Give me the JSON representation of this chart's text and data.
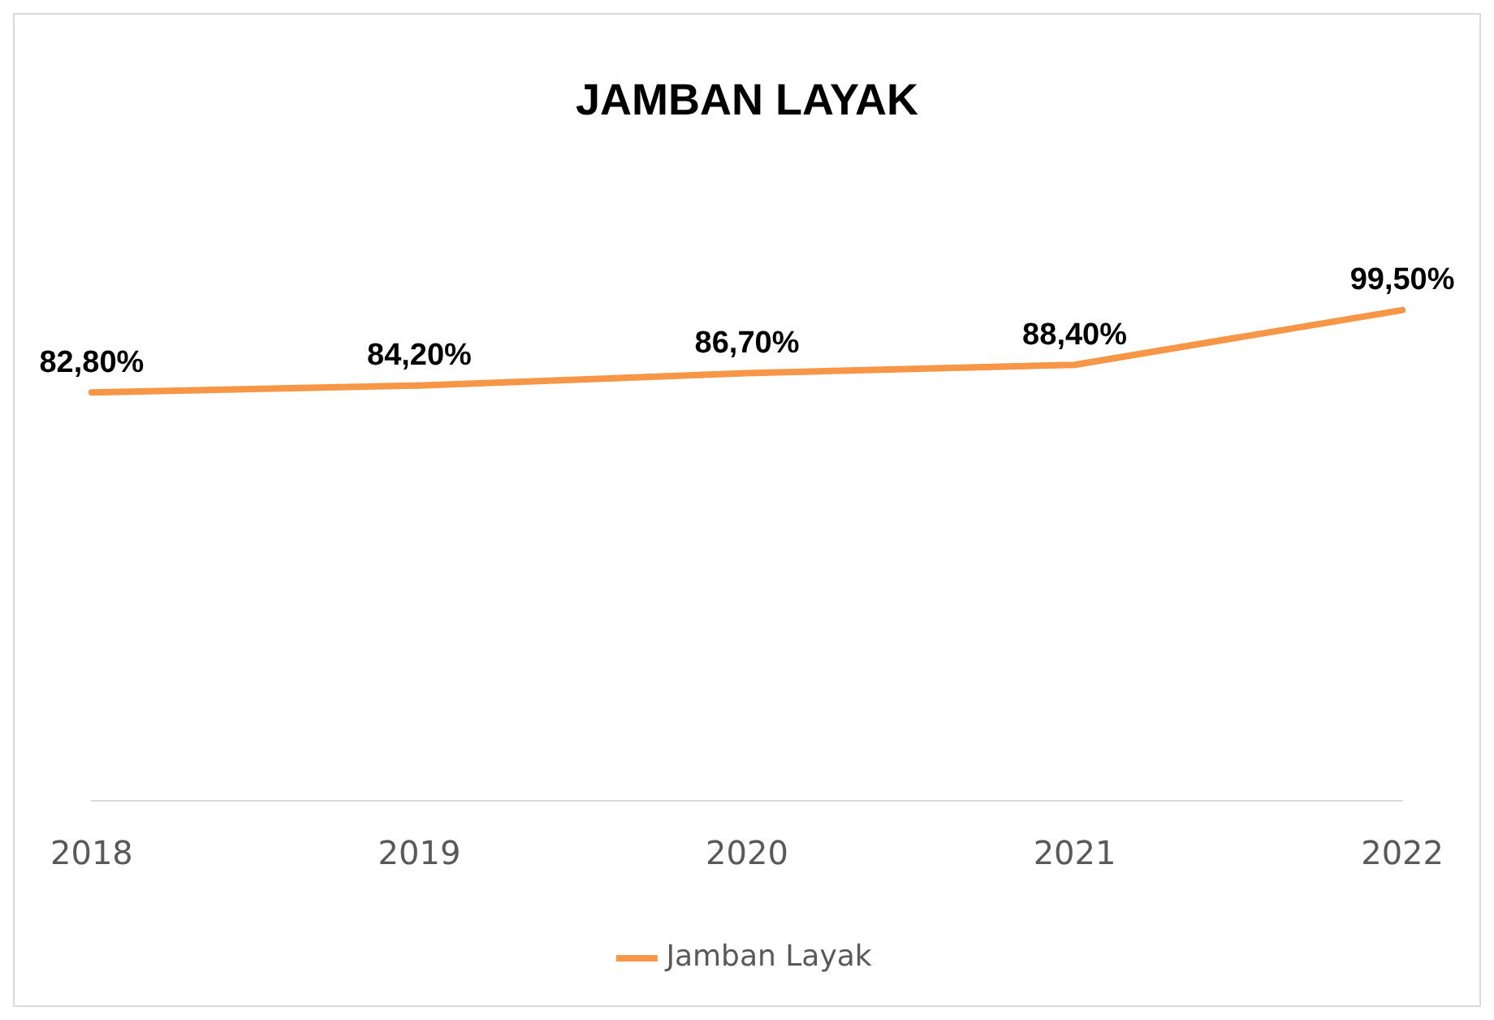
{
  "chart_data": {
    "type": "line",
    "title": "JAMBAN LAYAK",
    "categories": [
      "2018",
      "2019",
      "2020",
      "2021",
      "2022"
    ],
    "series": [
      {
        "name": "Jamban Layak",
        "color": "#f79646",
        "values": [
          82.8,
          84.2,
          86.7,
          88.4,
          99.5
        ],
        "value_labels": [
          "82,80%",
          "84,20%",
          "86,70%",
          "88,40%",
          "99,50%"
        ]
      }
    ],
    "tick_labels": "x",
    "grid": false,
    "legend": "bottom",
    "line_style": "solid"
  }
}
